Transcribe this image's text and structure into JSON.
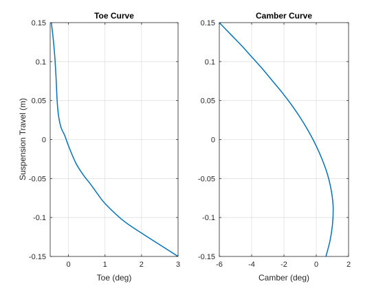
{
  "chart_data": [
    {
      "type": "line",
      "title": "Toe Curve",
      "xlabel": "Toe (deg)",
      "ylabel": "Suspension Travel (m)",
      "xlim": [
        -0.5,
        3
      ],
      "ylim": [
        -0.15,
        0.15
      ],
      "xticks": [
        0,
        1,
        2,
        3
      ],
      "yticks": [
        -0.15,
        -0.1,
        -0.05,
        0,
        0.05,
        0.1,
        0.15
      ],
      "xtick_labels": [
        "0",
        "1",
        "2",
        "3"
      ],
      "ytick_labels": [
        "-0.15",
        "-0.1",
        "-0.05",
        "0",
        "0.05",
        "0.1",
        "0.15"
      ],
      "grid": true,
      "color": "#0072BD",
      "series": [
        {
          "x": [
            -0.47,
            -0.43,
            -0.38,
            -0.34,
            -0.31,
            -0.27,
            -0.2,
            -0.1,
            0.0,
            0.2,
            0.4,
            0.6,
            0.8,
            1.0,
            1.5,
            2.0,
            2.5,
            3.0
          ],
          "y": [
            0.15,
            0.135,
            0.11,
            0.08,
            0.05,
            0.03,
            0.015,
            0.005,
            -0.008,
            -0.03,
            -0.045,
            -0.057,
            -0.07,
            -0.082,
            -0.104,
            -0.12,
            -0.135,
            -0.15
          ]
        }
      ]
    },
    {
      "type": "line",
      "title": "Camber Curve",
      "xlabel": "Camber (deg)",
      "ylabel": "",
      "xlim": [
        -6,
        2
      ],
      "ylim": [
        -0.15,
        0.15
      ],
      "xticks": [
        -6,
        -4,
        -2,
        0,
        2
      ],
      "yticks": [
        -0.15,
        -0.1,
        -0.05,
        0,
        0.05,
        0.1,
        0.15
      ],
      "xtick_labels": [
        "-6",
        "-4",
        "-2",
        "0",
        "2"
      ],
      "ytick_labels": [
        "-0.15",
        "-0.1",
        "-0.05",
        "0",
        "0.05",
        "0.1",
        "0.15"
      ],
      "grid": true,
      "color": "#0072BD",
      "series": [
        {
          "x": [
            -6.0,
            -5.3,
            -4.6,
            -3.95,
            -3.3,
            -2.7,
            -2.1,
            -1.55,
            -1.05,
            -0.6,
            -0.2,
            0.15,
            0.45,
            0.7,
            0.88,
            1.0,
            1.05,
            1.0,
            0.85,
            0.6
          ],
          "y": [
            0.15,
            0.135,
            0.12,
            0.105,
            0.09,
            0.075,
            0.06,
            0.045,
            0.03,
            0.015,
            0.0,
            -0.015,
            -0.03,
            -0.045,
            -0.06,
            -0.075,
            -0.09,
            -0.11,
            -0.13,
            -0.15
          ]
        }
      ]
    }
  ]
}
